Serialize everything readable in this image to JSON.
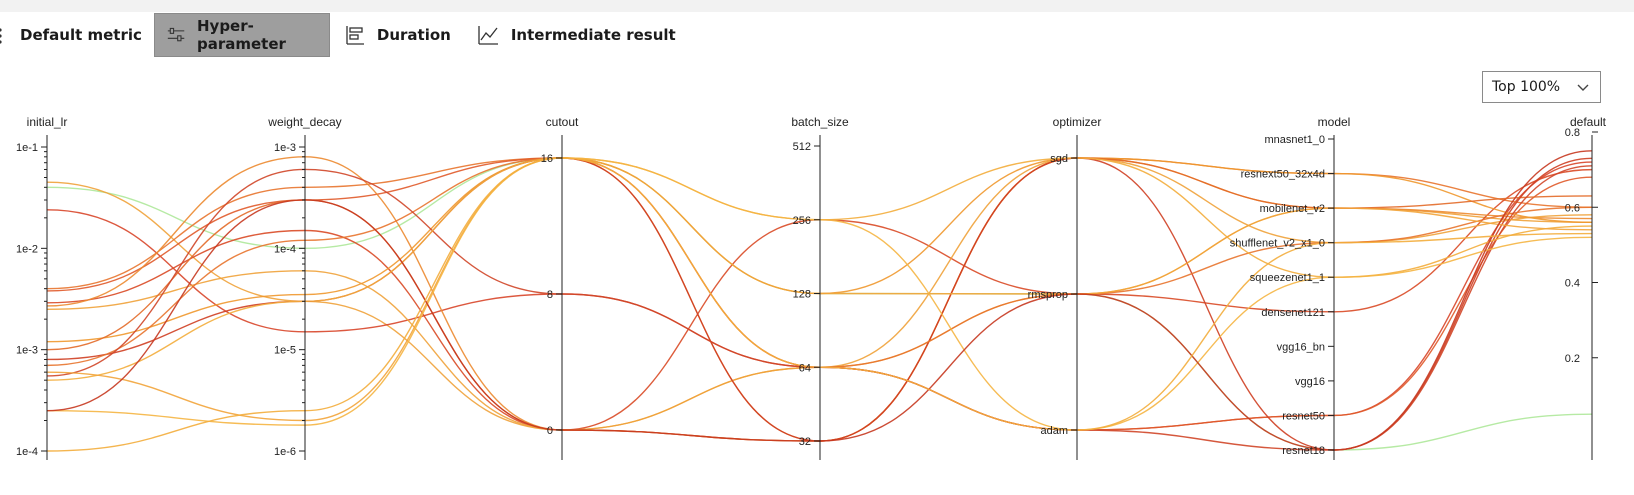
{
  "tabs": [
    {
      "label": "Default metric",
      "icon": "scatter-icon",
      "active": false
    },
    {
      "label": "Hyper-parameter",
      "icon": "sliders-icon",
      "active": true
    },
    {
      "label": "Duration",
      "icon": "bar-chart-icon",
      "active": false
    },
    {
      "label": "Intermediate result",
      "icon": "line-chart-icon",
      "active": false
    }
  ],
  "filter": {
    "value": "Top 100%"
  },
  "chart_data": {
    "type": "parallel-coordinates",
    "axes": [
      {
        "name": "initial_lr",
        "scale": "log",
        "ticks": [
          "1e-1",
          "1e-2",
          "1e-3",
          "1e-4"
        ],
        "range": [
          0.0001,
          0.1
        ]
      },
      {
        "name": "weight_decay",
        "scale": "log",
        "ticks": [
          "1e-3",
          "1e-4",
          "1e-5",
          "1e-6"
        ],
        "range": [
          1e-06,
          0.001
        ]
      },
      {
        "name": "cutout",
        "scale": "categorical",
        "ticks": [
          "16",
          "8",
          "0"
        ]
      },
      {
        "name": "batch_size",
        "scale": "categorical",
        "ticks": [
          "512",
          "256",
          "128",
          "64",
          "32"
        ]
      },
      {
        "name": "optimizer",
        "scale": "categorical",
        "ticks": [
          "sgd",
          "rmsprop",
          "adam"
        ]
      },
      {
        "name": "model",
        "scale": "categorical",
        "ticks": [
          "mnasnet1_0",
          "resnext50_32x4d",
          "mobilenet_v2",
          "shufflenet_v2_x1_0",
          "squeezenet1_1",
          "densenet121",
          "vgg16_bn",
          "vgg16",
          "resnet50",
          "resnet18"
        ]
      },
      {
        "name": "default",
        "scale": "linear",
        "ticks": [
          "0.8",
          "0.6",
          "0.4",
          "0.2"
        ],
        "range": [
          0.0,
          0.8
        ]
      }
    ],
    "lines": [
      [
        0.04,
        0.0001,
        "16",
        "128",
        "rmsprop",
        "resnet18",
        0.05,
        "#aee89a"
      ],
      [
        0.045,
        3e-05,
        "0",
        "64",
        "rmsprop",
        "mobilenet_v2",
        0.56,
        "#f0a23a"
      ],
      [
        0.024,
        1.5e-05,
        "8",
        "64",
        "adam",
        "resnet50",
        0.72,
        "#d8462a"
      ],
      [
        0.004,
        0.0004,
        "16",
        "32",
        "sgd",
        "resnext50_32x4d",
        0.6,
        "#e8742e"
      ],
      [
        0.0038,
        0.0003,
        "16",
        "64",
        "adam",
        "resnet50",
        0.68,
        "#e05a2a"
      ],
      [
        0.0029,
        0.00015,
        "0",
        "256",
        "rmsprop",
        "densenet121",
        0.7,
        "#d94a26"
      ],
      [
        0.0027,
        0.0008,
        "0",
        "32",
        "sgd",
        "mobilenet_v2",
        0.57,
        "#ec8a30"
      ],
      [
        0.0025,
        6e-05,
        "0",
        "64",
        "sgd",
        "shufflenet_v2_x1_0",
        0.58,
        "#f0a23a"
      ],
      [
        0.0012,
        3.5e-05,
        "16",
        "128",
        "sgd",
        "resnext50_32x4d",
        0.56,
        "#f0982e"
      ],
      [
        0.001,
        0.0003,
        "0",
        "32",
        "sgd",
        "mobilenet_v2",
        0.63,
        "#e36a28"
      ],
      [
        0.0008,
        3e-05,
        "16",
        "32",
        "sgd",
        "resnet18",
        0.73,
        "#cf3f22"
      ],
      [
        0.0007,
        0.00012,
        "16",
        "64",
        "rmsprop",
        "shufflenet_v2_x1_0",
        0.6,
        "#e8742e"
      ],
      [
        0.00055,
        0.0006,
        "8",
        "64",
        "adam",
        "resnet18",
        0.71,
        "#d04628"
      ],
      [
        0.0005,
        3e-05,
        "16",
        "256",
        "sgd",
        "squeezenet1_1",
        0.55,
        "#f3ad3c"
      ],
      [
        0.0006,
        2e-06,
        "16",
        "128",
        "rmsprop",
        "mobilenet_v2",
        0.54,
        "#f2a43a"
      ],
      [
        0.00025,
        1.8e-06,
        "16",
        "256",
        "adam",
        "squeezenet1_1",
        0.52,
        "#f5b543"
      ],
      [
        0.00025,
        0.0003,
        "0",
        "32",
        "rmsprop",
        "resnet18",
        0.75,
        "#c63820"
      ],
      [
        0.0001,
        2.5e-06,
        "16",
        "64",
        "adam",
        "shufflenet_v2_x1_0",
        0.53,
        "#f3ad3c"
      ]
    ]
  }
}
